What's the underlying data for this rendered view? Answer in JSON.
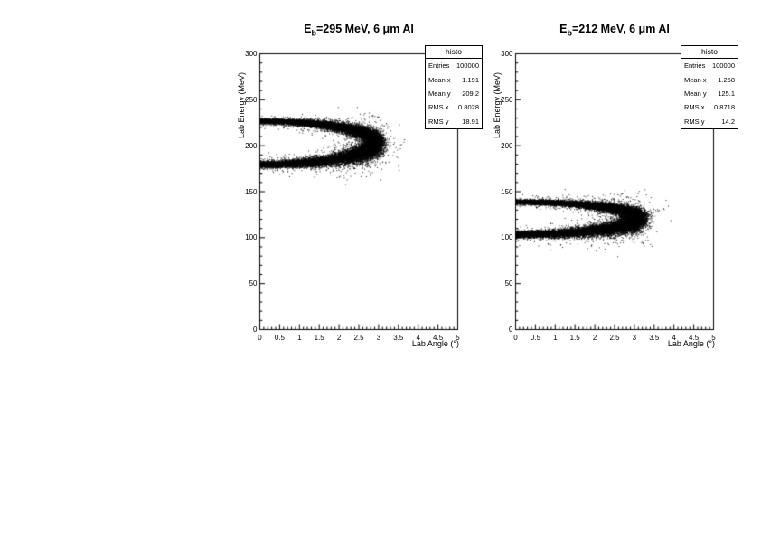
{
  "app": {
    "background_color": "#ffffff",
    "accent_color": "#000000"
  },
  "chart_data": [
    {
      "type": "scatter",
      "title": "E_b=295 MeV, 6 μm Al",
      "title_parts": {
        "pre": "E",
        "sub": "b",
        "post": "=295 MeV, 6 μm Al"
      },
      "xlabel": "Lab Angle (°)",
      "ylabel": "Lab Energy (MeV)",
      "xlim": [
        0,
        5
      ],
      "ylim": [
        0,
        300
      ],
      "xtick_labels": [
        "0",
        "0.5",
        "1",
        "1.5",
        "2",
        "2.5",
        "3",
        "3.5",
        "4",
        "4.5",
        "5"
      ],
      "ytick_labels": [
        "0",
        "50",
        "100",
        "150",
        "200",
        "250",
        "300"
      ],
      "x_minor_step": 0.1,
      "y_minor_step": 10,
      "grid": false,
      "marker_color": "#000000",
      "stats": {
        "title": "histo",
        "rows": [
          {
            "label": "Entries",
            "value": "100000"
          },
          {
            "label": "Mean x",
            "value": "1.191"
          },
          {
            "label": "Mean y",
            "value": "209.2"
          },
          {
            "label": "RMS x",
            "value": "0.8028"
          },
          {
            "label": "RMS y",
            "value": "18.91"
          }
        ]
      },
      "distribution": {
        "shape": "half-ellipse envelope (kinematic locus)",
        "upper_intercept_mev": 227,
        "lower_intercept_mev": 180,
        "center_energy": 203.5,
        "energy_half_span": 23.5,
        "max_angle": 2.92,
        "angle_sigma": [
          0.035,
          0.11
        ],
        "energy_sigma": [
          1.3,
          4.0
        ],
        "lower_branch_fuzz": 1.4,
        "outlier_fraction": 0.045,
        "entries": 100000,
        "rendered_points": 22000,
        "seed": 20240295
      }
    },
    {
      "type": "scatter",
      "title": "E_b=212 MeV, 6 μm Al",
      "title_parts": {
        "pre": "E",
        "sub": "b",
        "post": "=212 MeV, 6 μm Al"
      },
      "xlabel": "Lab Angle (°)",
      "ylabel": "Lab Energy (MeV)",
      "xlim": [
        0,
        5
      ],
      "ylim": [
        0,
        300
      ],
      "xtick_labels": [
        "0",
        "0.5",
        "1",
        "1.5",
        "2",
        "2.5",
        "3",
        "3.5",
        "4",
        "4.5",
        "5"
      ],
      "ytick_labels": [
        "0",
        "50",
        "100",
        "150",
        "200",
        "250",
        "300"
      ],
      "x_minor_step": 0.1,
      "y_minor_step": 10,
      "grid": false,
      "marker_color": "#000000",
      "stats": {
        "title": "histo",
        "rows": [
          {
            "label": "Entries",
            "value": "100000"
          },
          {
            "label": "Mean x",
            "value": "1.258"
          },
          {
            "label": "Mean y",
            "value": "125.1"
          },
          {
            "label": "RMS x",
            "value": "0.8718"
          },
          {
            "label": "RMS y",
            "value": "14.2"
          }
        ]
      },
      "distribution": {
        "shape": "half-ellipse envelope (kinematic locus)",
        "upper_intercept_mev": 139,
        "lower_intercept_mev": 104,
        "center_energy": 121.5,
        "energy_half_span": 17.6,
        "max_angle": 3.08,
        "angle_sigma": [
          0.035,
          0.12
        ],
        "energy_sigma": [
          1.2,
          3.4
        ],
        "lower_branch_fuzz": 1.5,
        "outlier_fraction": 0.045,
        "entries": 100000,
        "rendered_points": 22000,
        "seed": 20240212
      }
    }
  ]
}
